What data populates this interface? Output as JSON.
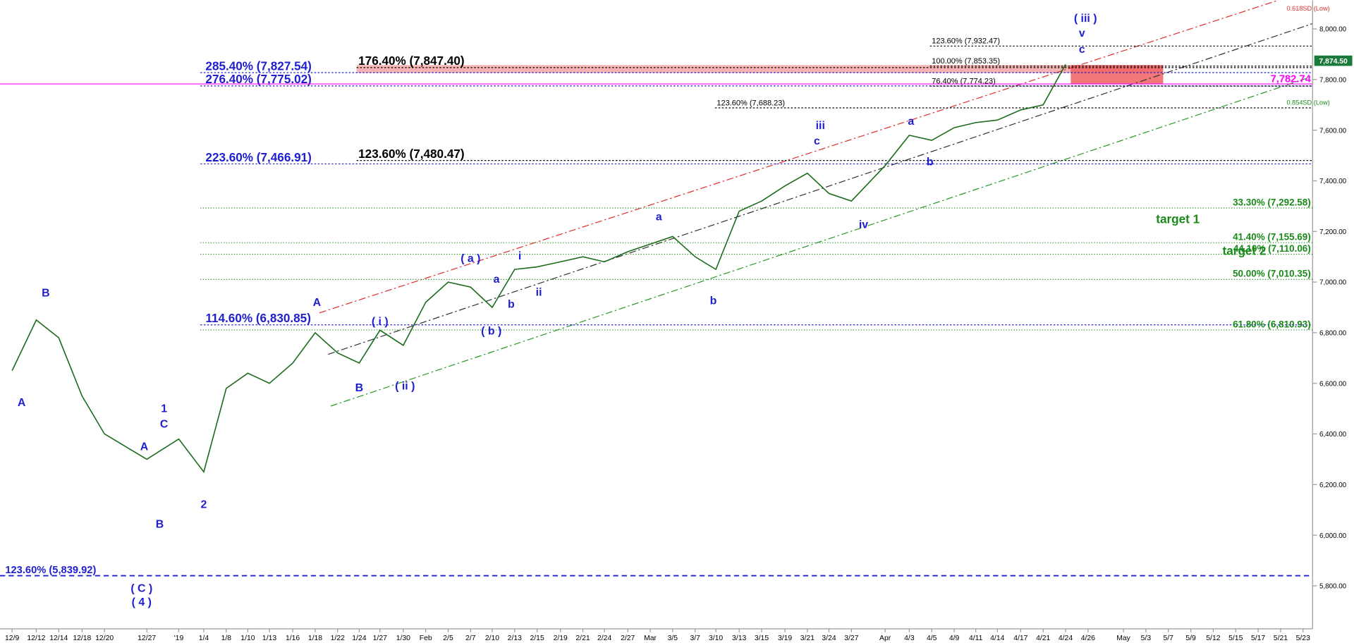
{
  "chart_data": {
    "type": "line",
    "categories": [
      "12/9",
      "12/12",
      "12/14",
      "12/18",
      "12/20",
      "12/27",
      "'19",
      "1/4",
      "1/8",
      "1/10",
      "1/13",
      "1/16",
      "1/18",
      "1/22",
      "1/24",
      "1/27",
      "1/30",
      "Feb",
      "2/5",
      "2/7",
      "2/10",
      "2/13",
      "2/15",
      "2/19",
      "2/21",
      "2/24",
      "2/27",
      "Mar",
      "3/5",
      "3/7",
      "3/10",
      "3/13",
      "3/15",
      "3/19",
      "3/21",
      "3/24",
      "3/27",
      "Apr",
      "4/3",
      "4/5",
      "4/9",
      "4/11",
      "4/14",
      "4/17",
      "4/21",
      "4/24",
      "4/26",
      "May",
      "5/3",
      "5/7",
      "5/9",
      "5/12",
      "5/15",
      "5/17",
      "5/21",
      "5/23"
    ],
    "values": [
      6650,
      6850,
      6780,
      6550,
      6400,
      6300,
      6380,
      6250,
      6580,
      6640,
      6600,
      6680,
      6800,
      6720,
      6680,
      6810,
      6750,
      6920,
      7000,
      6980,
      6900,
      7050,
      7060,
      7080,
      7100,
      7080,
      7120,
      7150,
      7180,
      7100,
      7050,
      7280,
      7320,
      7380,
      7430,
      7350,
      7320,
      7460,
      7580,
      7560,
      7610,
      7630,
      7640,
      7680,
      7700,
      7860,
      null,
      null,
      null,
      null,
      null,
      null,
      null,
      null,
      null,
      null
    ],
    "color": "#1a6b1a",
    "ylim": [
      5630,
      8113
    ],
    "yticks": [
      {
        "value": 5800,
        "label": "5,800.00"
      },
      {
        "value": 6000,
        "label": "6,000.00"
      },
      {
        "value": 6200,
        "label": "6,200.00"
      },
      {
        "value": 6400,
        "label": "6,400.00"
      },
      {
        "value": 6600,
        "label": "6,600.00"
      },
      {
        "value": 6800,
        "label": "6,800.00"
      },
      {
        "value": 7000,
        "label": "7,000.00"
      },
      {
        "value": 7200,
        "label": "7,200.00"
      },
      {
        "value": 7400,
        "label": "7,400.00"
      },
      {
        "value": 7600,
        "label": "7,600.00"
      },
      {
        "value": 7800,
        "label": "7,800.00"
      },
      {
        "value": 8000,
        "label": "8,000.00"
      }
    ],
    "levels": [
      {
        "value": 7827.54,
        "label": "285.40% (7,827.54)",
        "color": "#1f1fd0"
      },
      {
        "value": 7775.02,
        "label": "276.40% (7,775.02)",
        "color": "#1f1fd0"
      },
      {
        "value": 7466.91,
        "label": "223.60% (7,466.91)",
        "color": "#1f1fd0"
      },
      {
        "value": 6830.85,
        "label": "114.60% (6,830.85)",
        "color": "#1f1fd0"
      },
      {
        "value": 5839.92,
        "label": "123.60% (5,839.92)",
        "color": "#1f1fd0"
      },
      {
        "value": 7847.4,
        "label": "176.40% (7,847.40)",
        "color": "#000000"
      },
      {
        "value": 7480.47,
        "label": "123.60% (7,480.47)",
        "color": "#000000"
      },
      {
        "value": 7932.47,
        "label": "123.60% (7,932.47)",
        "color": "#000000"
      },
      {
        "value": 7853.35,
        "label": "100.00% (7,853.35)",
        "color": "#000000"
      },
      {
        "value": 7774.23,
        "label": "76.40% (7,774.23)",
        "color": "#000000"
      },
      {
        "value": 7688.23,
        "label": "123.60% (7,688.23)",
        "color": "#000000"
      },
      {
        "value": 7292.58,
        "label": "33.30% (7,292.58)",
        "color": "#1a8a1a"
      },
      {
        "value": 7155.69,
        "label": "41.40% (7,155.69)",
        "color": "#1a8a1a"
      },
      {
        "value": 7110.06,
        "label": "44.10% (7,110.06)",
        "color": "#1a8a1a"
      },
      {
        "value": 7010.35,
        "label": "50.00% (7,010.35)",
        "color": "#1a8a1a"
      },
      {
        "value": 6810.93,
        "label": "61.80% (6,810.93)",
        "color": "#1a8a1a"
      }
    ],
    "price_labels": [
      {
        "value": 7874.5,
        "label": "7,874.50",
        "color": "#1a7a3a"
      },
      {
        "value": 7782.74,
        "label": "7,782.74",
        "color": "#ff00ff"
      }
    ],
    "annotations": [
      "B",
      "A",
      "1",
      "C",
      "A",
      "B",
      "2",
      "( C )",
      "( 4 )",
      "A",
      "B",
      "( i )",
      "( ii )",
      "( a )",
      "( b )",
      "a",
      "b",
      "i",
      "ii",
      "a",
      "b",
      "iii",
      "c",
      "iv",
      "a",
      "b",
      "( iii )",
      "v",
      "c",
      "target 1",
      "target 2",
      "0.618SD (Low)",
      "0.854SD (Low)"
    ]
  }
}
